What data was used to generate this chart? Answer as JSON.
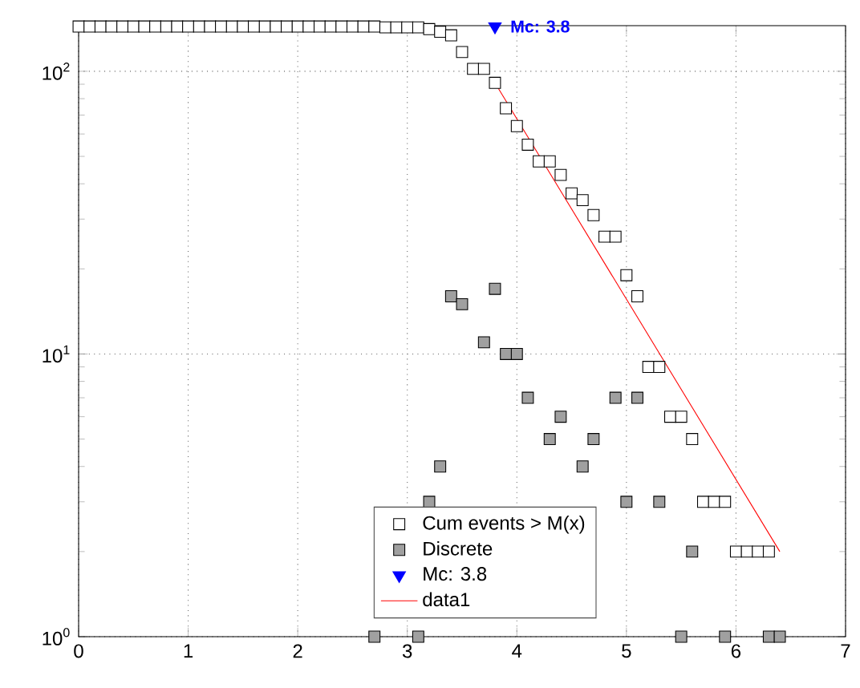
{
  "chart_data": {
    "type": "scatter",
    "series": [
      {
        "name": "Cum events > M(x)",
        "color": "#000000",
        "marker": "square",
        "x": [
          0,
          0.1,
          0.2,
          0.3,
          0.4,
          0.5,
          0.6,
          0.7,
          0.8,
          0.9,
          1.0,
          1.1,
          1.2,
          1.3,
          1.4,
          1.5,
          1.6,
          1.7,
          1.8,
          1.9,
          2.0,
          2.1,
          2.2,
          2.3,
          2.4,
          2.5,
          2.6,
          2.7,
          2.8,
          2.9,
          3.0,
          3.1,
          3.2,
          3.3,
          3.4,
          3.5,
          3.6,
          3.7,
          3.8,
          3.9,
          4.0,
          4.1,
          4.2,
          4.3,
          4.4,
          4.5,
          4.6,
          4.7,
          4.8,
          4.9,
          5.0,
          5.1,
          5.2,
          5.3,
          5.4,
          5.5,
          5.6,
          5.7,
          5.8,
          5.9,
          6.0,
          6.1,
          6.2,
          6.3
        ],
        "values": [
          144,
          144,
          144,
          144,
          144,
          144,
          144,
          144,
          144,
          144,
          144,
          144,
          144,
          144,
          144,
          144,
          144,
          144,
          144,
          144,
          144,
          144,
          144,
          144,
          144,
          144,
          144,
          144,
          143,
          143,
          143,
          143,
          141,
          138,
          134,
          117,
          102,
          102,
          91,
          74,
          64,
          55,
          48,
          48,
          43,
          37,
          35,
          31,
          26,
          26,
          19,
          16,
          9,
          9,
          6,
          6,
          5,
          3,
          3,
          3,
          2,
          2,
          2,
          2
        ]
      },
      {
        "name": "Discrete",
        "color": "#a0a0a0",
        "marker": "square",
        "x": [
          2.7,
          3.1,
          3.2,
          3.3,
          3.4,
          3.5,
          3.7,
          3.8,
          3.9,
          4.0,
          4.1,
          4.3,
          4.4,
          4.6,
          4.7,
          4.9,
          5.0,
          5.1,
          5.3,
          5.5,
          5.6,
          5.9,
          6.3,
          6.4
        ],
        "values": [
          1,
          1,
          3,
          4,
          16,
          15,
          11,
          17,
          10,
          10,
          7,
          5,
          6,
          4,
          5,
          7,
          3,
          7,
          3,
          1,
          2,
          1,
          1,
          1
        ]
      },
      {
        "name": "Mc: 3.8",
        "color": "#0000ff",
        "marker": "triangle",
        "x": [
          3.8
        ],
        "values": [
          144
        ]
      },
      {
        "name": "data1",
        "type": "line",
        "color": "#ff0000",
        "marker": "none",
        "x": [
          3.8,
          6.4
        ],
        "values": [
          91,
          2
        ]
      }
    ],
    "annotations": [
      {
        "text": "Mc: 3.8",
        "x": 3.8,
        "y": 144
      }
    ],
    "log": "y",
    "xlim": [
      0,
      7
    ],
    "xticks": [
      0,
      1,
      2,
      3,
      4,
      5,
      6,
      7
    ],
    "ylim": [
      1,
      145
    ],
    "yticks": [
      {
        "value": 1,
        "label": "10$^{0}$"
      },
      {
        "value": 10,
        "label": "10$^{1}$"
      },
      {
        "value": 100,
        "label": "10$^{2}$"
      }
    ],
    "grid": true,
    "legend": "bottom"
  }
}
